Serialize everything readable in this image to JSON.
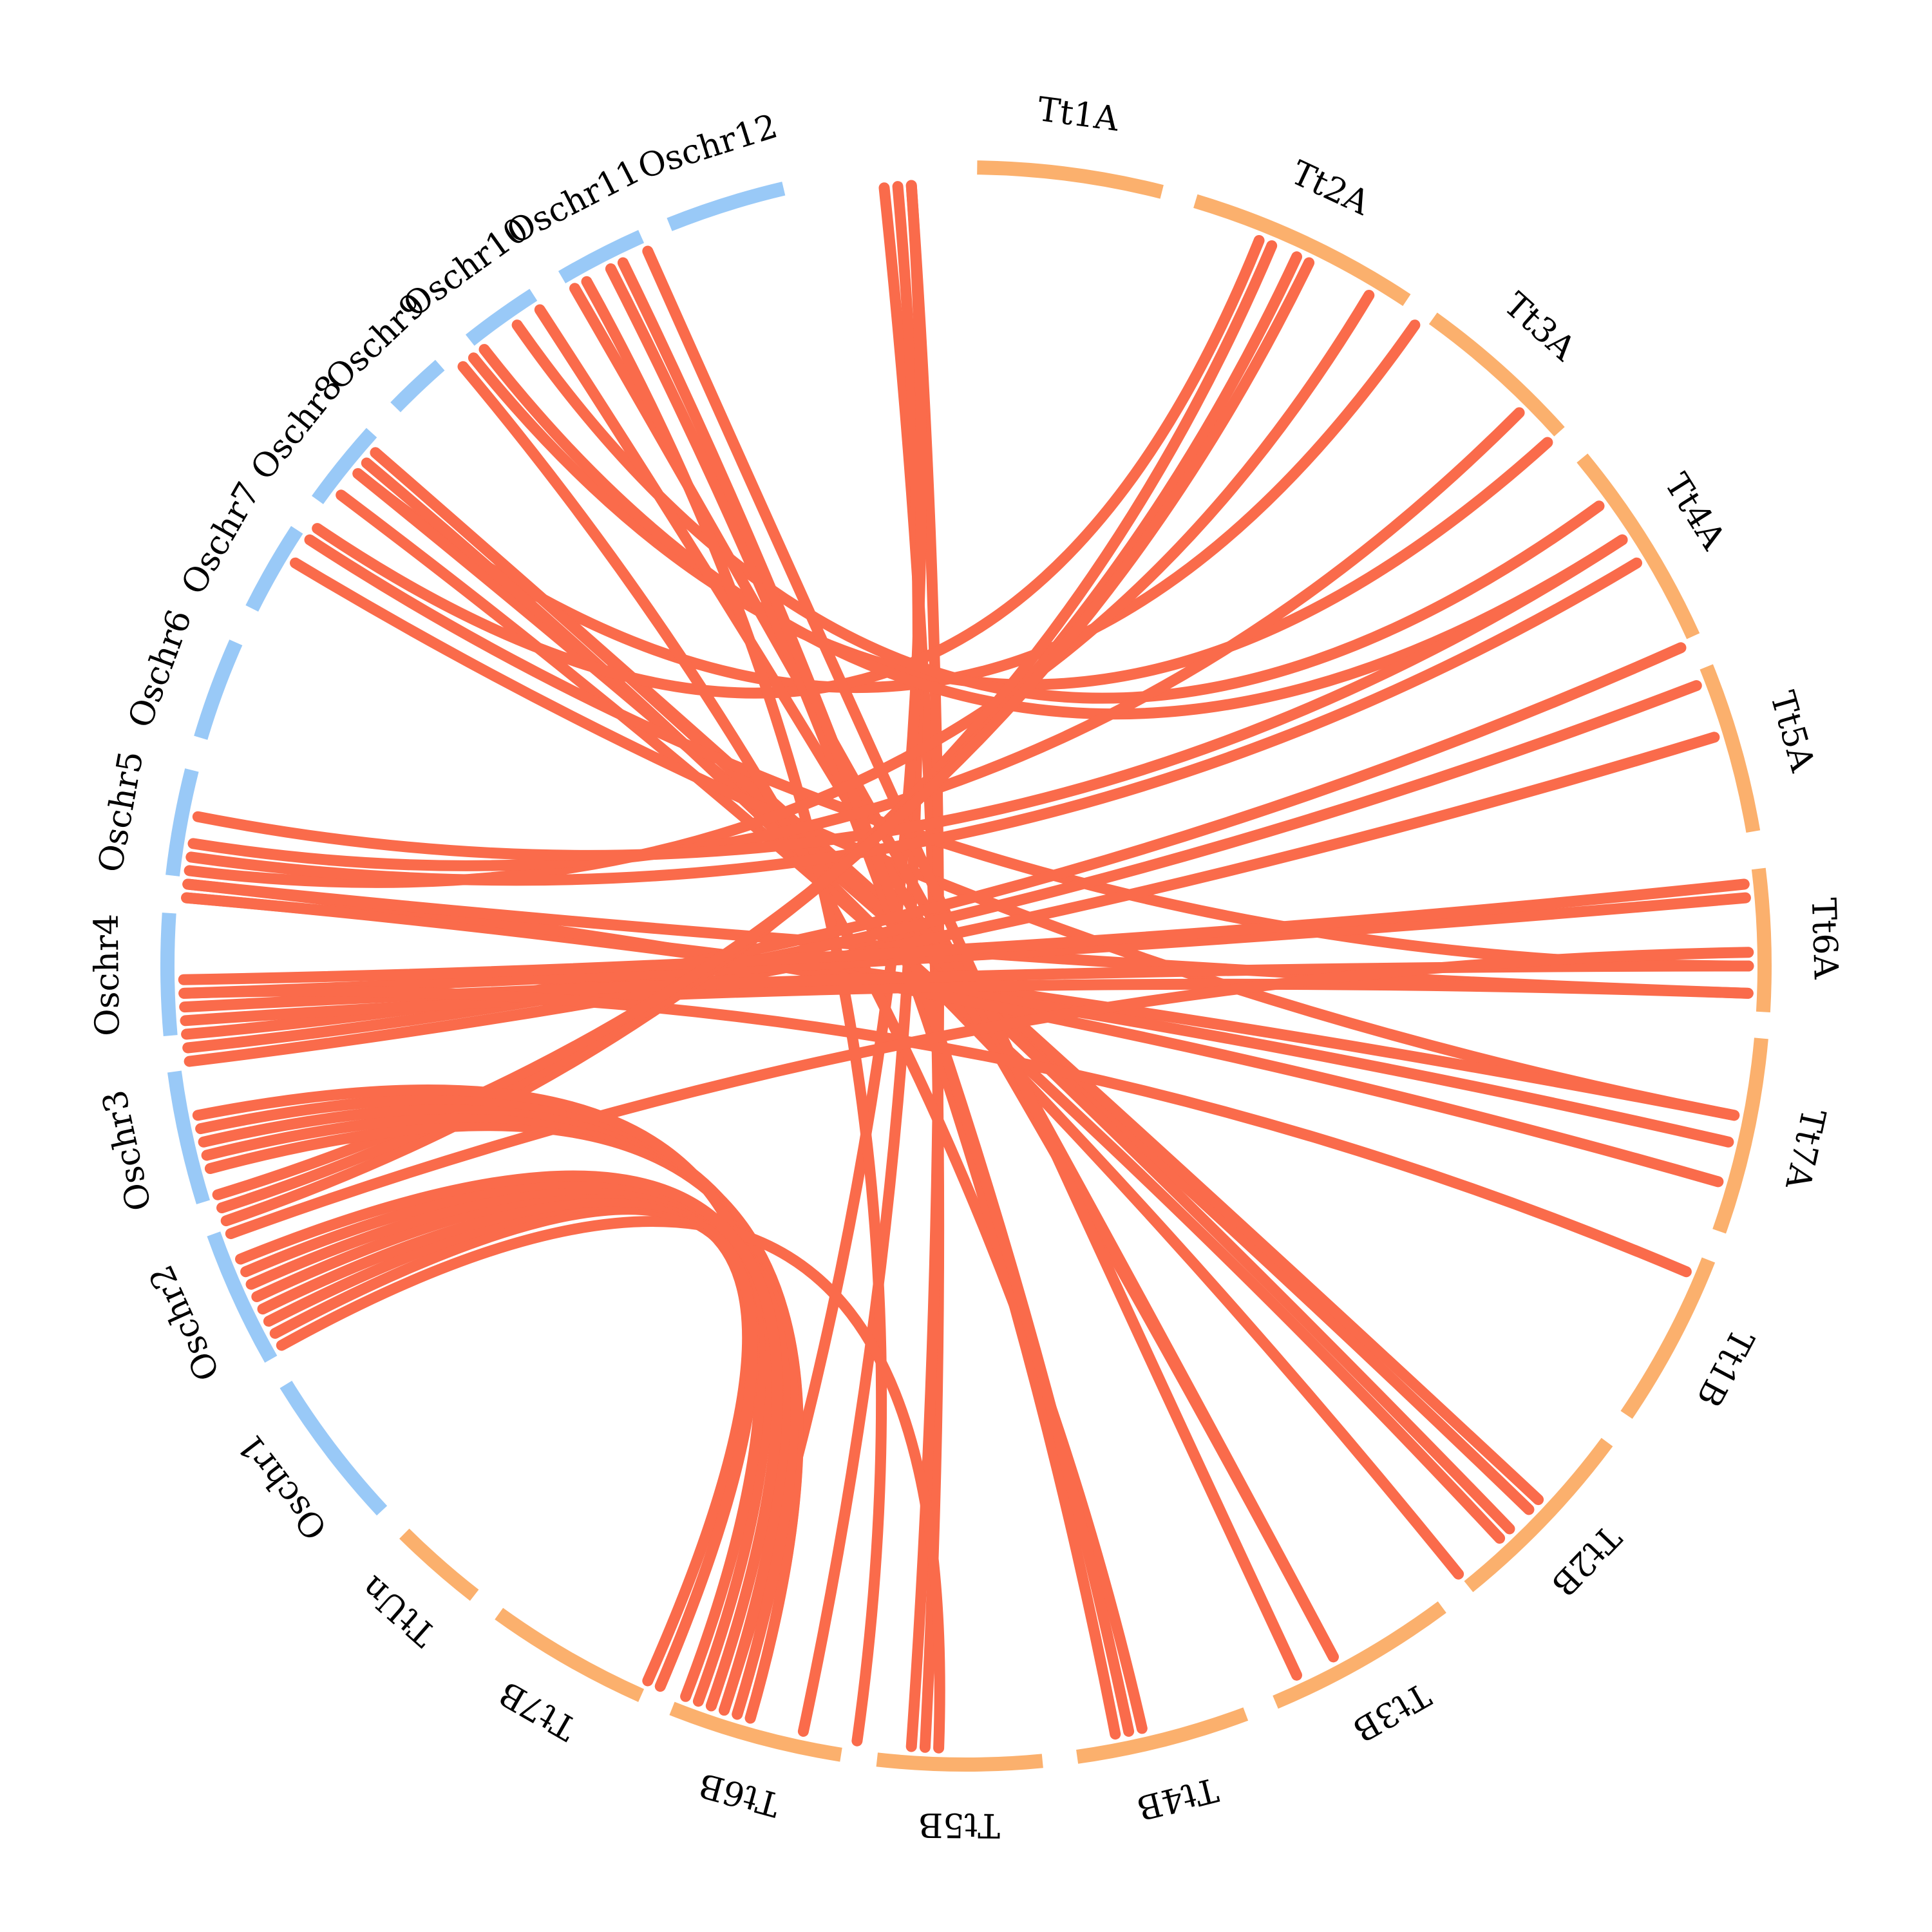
{
  "diagram": {
    "type": "circos-synteny",
    "colors": {
      "rice_segment": "#99c9f7",
      "wheat_segment": "#fbb06d",
      "link": "#fa6b4b",
      "label": "#000000",
      "background": "#ffffff"
    },
    "segments": [
      {
        "id": "Tt1A",
        "label": "Tt1A",
        "group": "wheat",
        "start": 0.8,
        "end": 14.2
      },
      {
        "id": "Tt2A",
        "label": "Tt2A",
        "group": "wheat",
        "start": 16.7,
        "end": 33.5
      },
      {
        "id": "Tt3A",
        "label": "Tt3A",
        "group": "wheat",
        "start": 35.8,
        "end": 48.0
      },
      {
        "id": "Tt4A",
        "label": "Tt4A",
        "group": "wheat",
        "start": 50.5,
        "end": 65.6
      },
      {
        "id": "Tt5A",
        "label": "Tt5A",
        "group": "wheat",
        "start": 68.0,
        "end": 80.3
      },
      {
        "id": "Tt6A",
        "label": "Tt6A",
        "group": "wheat",
        "start": 83.0,
        "end": 93.3
      },
      {
        "id": "Tt7A",
        "label": "Tt7A",
        "group": "wheat",
        "start": 95.2,
        "end": 109.4
      },
      {
        "id": "Tt1B",
        "label": "Tt1B",
        "group": "wheat",
        "start": 111.6,
        "end": 124.2
      },
      {
        "id": "Tt2B",
        "label": "Tt2B",
        "group": "wheat",
        "start": 126.6,
        "end": 141.0
      },
      {
        "id": "Tt3B",
        "label": "Tt3B",
        "group": "wheat",
        "start": 143.4,
        "end": 157.2
      },
      {
        "id": "Tt4B",
        "label": "Tt4B",
        "group": "wheat",
        "start": 159.5,
        "end": 172.0
      },
      {
        "id": "Tt5B",
        "label": "Tt5B",
        "group": "wheat",
        "start": 174.5,
        "end": 186.4
      },
      {
        "id": "Tt6B",
        "label": "Tt6B",
        "group": "wheat",
        "start": 189.0,
        "end": 201.6
      },
      {
        "id": "Tt7B",
        "label": "Tt7B",
        "group": "wheat",
        "start": 204.0,
        "end": 215.8
      },
      {
        "id": "TtUn",
        "label": "TtUn",
        "group": "wheat",
        "start": 218.0,
        "end": 224.7
      },
      {
        "id": "Oschr1",
        "label": "Oschr1",
        "group": "rice",
        "start": 227.0,
        "end": 238.4
      },
      {
        "id": "Oschr2",
        "label": "Oschr2",
        "group": "rice",
        "start": 240.5,
        "end": 250.4
      },
      {
        "id": "Oschr3",
        "label": "Oschr3",
        "group": "rice",
        "start": 252.8,
        "end": 262.4
      },
      {
        "id": "Oschr4",
        "label": "Oschr4",
        "group": "rice",
        "start": 265.0,
        "end": 273.8
      },
      {
        "id": "Oschr5",
        "label": "Oschr5",
        "group": "rice",
        "start": 276.5,
        "end": 284.2
      },
      {
        "id": "Oschr6",
        "label": "Oschr6",
        "group": "rice",
        "start": 286.6,
        "end": 293.9
      },
      {
        "id": "Oschr7",
        "label": "Oschr7",
        "group": "rice",
        "start": 296.6,
        "end": 303.1
      },
      {
        "id": "Oschr8",
        "label": "Oschr8",
        "group": "rice",
        "start": 305.7,
        "end": 311.9
      },
      {
        "id": "Oschr9",
        "label": "Oschr9",
        "group": "rice",
        "start": 314.4,
        "end": 318.8
      },
      {
        "id": "Oschr10",
        "label": "Oschr10",
        "group": "rice",
        "start": 321.6,
        "end": 327.2
      },
      {
        "id": "Oschr11",
        "label": "Oschr11",
        "group": "rice",
        "start": 329.6,
        "end": 336.0
      },
      {
        "id": "Oschr12",
        "label": "Oschr12",
        "group": "rice",
        "start": 338.2,
        "end": 346.8
      }
    ],
    "links": [
      [
        354,
        183
      ],
      [
        355,
        192
      ],
      [
        356,
        184
      ],
      [
        356,
        198
      ],
      [
        309,
        35
      ],
      [
        309,
        134
      ],
      [
        311,
        133
      ],
      [
        311,
        136
      ],
      [
        310,
        141
      ],
      [
        307,
        137
      ],
      [
        304,
        22
      ],
      [
        303,
        90
      ],
      [
        301,
        101
      ],
      [
        320,
        167
      ],
      [
        321,
        48
      ],
      [
        322,
        57
      ],
      [
        325,
        54
      ],
      [
        327,
        152
      ],
      [
        330,
        152
      ],
      [
        331,
        188
      ],
      [
        333,
        169
      ],
      [
        334,
        168
      ],
      [
        336,
        155
      ],
      [
        275,
        101
      ],
      [
        275,
        103
      ],
      [
        276,
        106
      ],
      [
        276,
        92
      ],
      [
        277,
        31
      ],
      [
        278,
        59
      ],
      [
        279,
        45
      ],
      [
        281,
        57
      ],
      [
        263,
        73
      ],
      [
        264,
        69
      ],
      [
        265,
        66
      ],
      [
        266,
        92
      ],
      [
        267,
        90
      ],
      [
        268,
        85
      ],
      [
        268,
        113
      ],
      [
        269,
        84
      ],
      [
        250,
        89
      ],
      [
        251,
        23
      ],
      [
        252,
        25
      ],
      [
        253,
        26
      ],
      [
        255,
        196
      ],
      [
        256,
        196
      ],
      [
        257,
        197
      ],
      [
        258,
        200
      ],
      [
        259,
        201
      ],
      [
        241,
        182
      ],
      [
        242,
        203
      ],
      [
        243,
        204
      ],
      [
        244,
        197
      ],
      [
        245,
        203
      ],
      [
        246,
        198
      ],
      [
        247,
        199
      ],
      [
        248,
        199
      ]
    ]
  }
}
